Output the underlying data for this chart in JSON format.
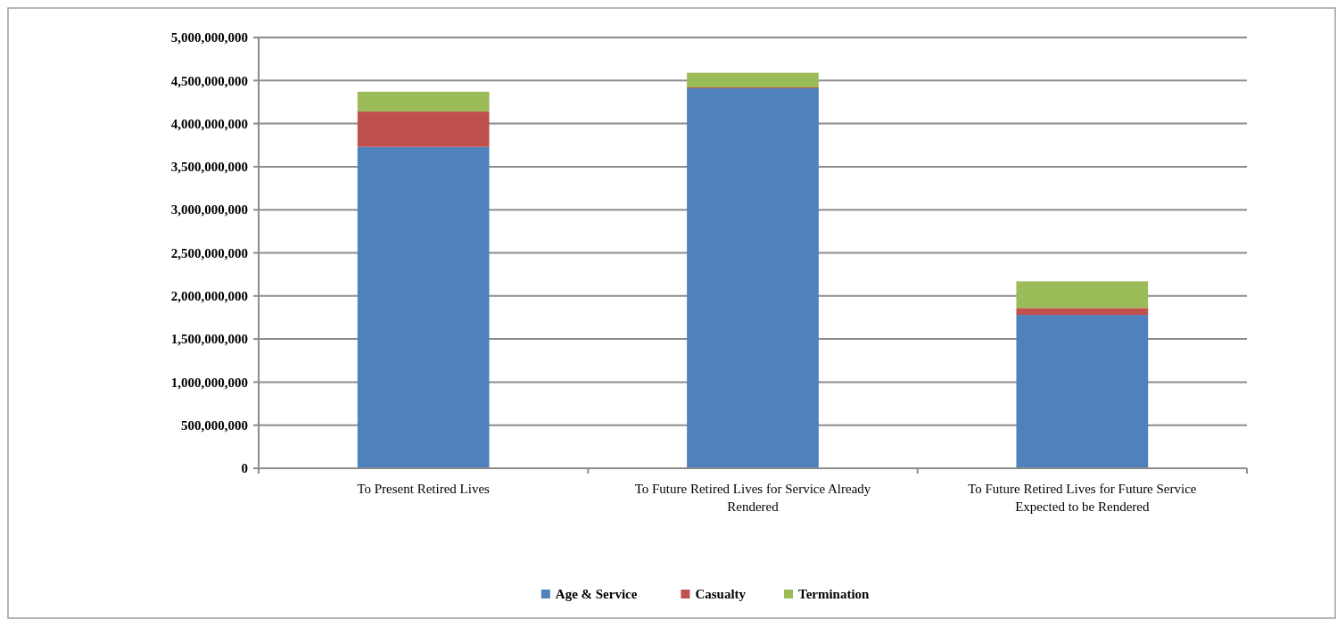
{
  "chart_data": {
    "type": "bar",
    "stacked": true,
    "categories": [
      "To Present Retired Lives",
      "To Future Retired Lives for Service Already Rendered",
      "To Future Retired Lives for Future Service Expected to be Rendered"
    ],
    "series": [
      {
        "name": "Age & Service",
        "color": "#4f81bd",
        "values": [
          3730000000,
          4410000000,
          1780000000
        ]
      },
      {
        "name": "Casualty",
        "color": "#c0504d",
        "values": [
          410000000,
          10000000,
          80000000
        ]
      },
      {
        "name": "Termination",
        "color": "#9bbb59",
        "values": [
          230000000,
          170000000,
          310000000
        ]
      }
    ],
    "ylim": [
      0,
      5000000000
    ],
    "yticks": [
      {
        "value": 0,
        "label": "0"
      },
      {
        "value": 500000000,
        "label": "500,000,000"
      },
      {
        "value": 1000000000,
        "label": "1,000,000,000"
      },
      {
        "value": 1500000000,
        "label": "1,500,000,000"
      },
      {
        "value": 2000000000,
        "label": "2,000,000,000"
      },
      {
        "value": 2500000000,
        "label": "2,500,000,000"
      },
      {
        "value": 3000000000,
        "label": "3,000,000,000"
      },
      {
        "value": 3500000000,
        "label": "3,500,000,000"
      },
      {
        "value": 4000000000,
        "label": "4,000,000,000"
      },
      {
        "value": 4500000000,
        "label": "4,500,000,000"
      },
      {
        "value": 5000000000,
        "label": "5,000,000,000"
      }
    ],
    "grid": "y",
    "legend": "bottom"
  }
}
